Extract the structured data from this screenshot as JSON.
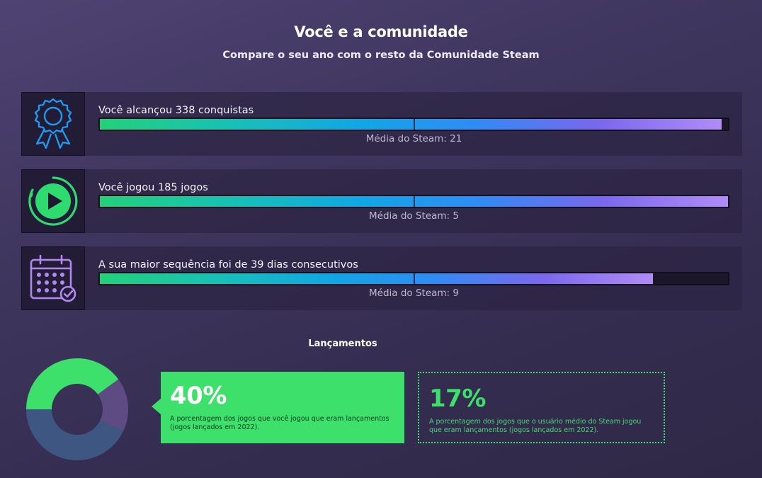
{
  "header": {
    "title": "Você e a comunidade",
    "subtitle": "Compare o seu ano com o resto da Comunidade Steam"
  },
  "stats": [
    {
      "icon": "award-ribbon-icon",
      "label": "Você alcançou 338 conquistas",
      "average": "Média do Steam: 21",
      "fill_fraction": 0.99
    },
    {
      "icon": "play-circle-icon",
      "label": "Você jogou 185 jogos",
      "average": "Média do Steam: 5",
      "fill_fraction": 1.0
    },
    {
      "icon": "calendar-check-icon",
      "label": "A sua maior sequência foi de 39 dias consecutivos",
      "average": "Média do Steam: 9",
      "fill_fraction": 0.88
    }
  ],
  "releases": {
    "title": "Lançamentos",
    "you": {
      "percent": "40%",
      "description": "A porcentagem dos jogos que você jogou que eram lançamentos (jogos lançados em 2022)."
    },
    "average": {
      "percent": "17%",
      "description": "A porcentagem dos jogos que o usuário médio do Steam jogou que eram lançamentos (jogos lançados em 2022)."
    },
    "donut_fractions": {
      "you": 0.4,
      "steam_average": 0.17
    },
    "colors": {
      "you": "#3ce06a",
      "average": "#5e4b84",
      "rest": "#3e5682"
    }
  },
  "colors": {
    "accent_green": "#3ce06a",
    "bar_start": "#23d17a",
    "bar_end": "#b08cf7"
  }
}
